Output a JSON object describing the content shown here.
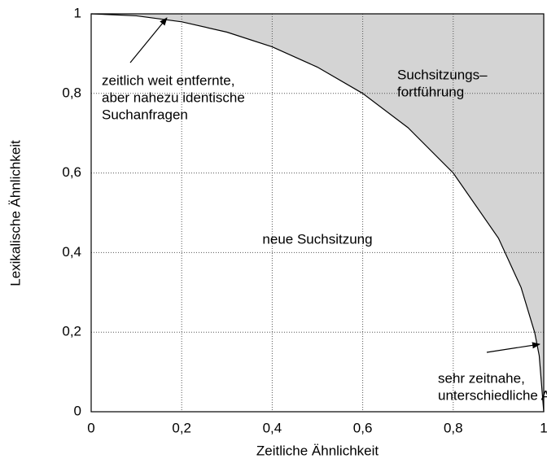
{
  "chart_data": {
    "type": "line",
    "x_label": "Zeitliche Ähnlichkeit",
    "y_label": "Lexikalische Ähnlichkeit",
    "x": [
      0,
      0.1,
      0.2,
      0.3,
      0.4,
      0.5,
      0.6,
      0.7,
      0.8,
      0.9,
      0.95,
      0.98,
      0.99,
      1
    ],
    "values": [
      1,
      0.995,
      0.98,
      0.954,
      0.917,
      0.866,
      0.8,
      0.714,
      0.6,
      0.436,
      0.312,
      0.199,
      0.141,
      0
    ],
    "color": "#000000",
    "fill_color": "#d4d4d4",
    "xlim": [
      0,
      1
    ],
    "ylim": [
      0,
      1
    ],
    "xticks": [
      0,
      {
        "value": 0.2,
        "label": "0,2"
      },
      {
        "value": 0.4,
        "label": "0,4"
      },
      {
        "value": 0.6,
        "label": "0,6"
      },
      {
        "value": 0.8,
        "label": "0,8"
      },
      1
    ],
    "yticks": [
      0,
      {
        "value": 0.2,
        "label": "0,2"
      },
      {
        "value": 0.4,
        "label": "0,4"
      },
      {
        "value": 0.6,
        "label": "0,6"
      },
      {
        "value": 0.8,
        "label": "0,8"
      },
      1
    ],
    "grid": true,
    "annotations": [
      {
        "lines": [
          "zeitlich weit entfernte,",
          "aber nahezu identische",
          "Suchanfragen"
        ]
      },
      {
        "lines": [
          "Suchsitzungs–",
          "fortführung"
        ]
      },
      {
        "lines": [
          "neue Suchsitzung"
        ]
      },
      {
        "lines": [
          "sehr zeitnahe,",
          "unterschiedliche Anfragen"
        ]
      }
    ]
  }
}
